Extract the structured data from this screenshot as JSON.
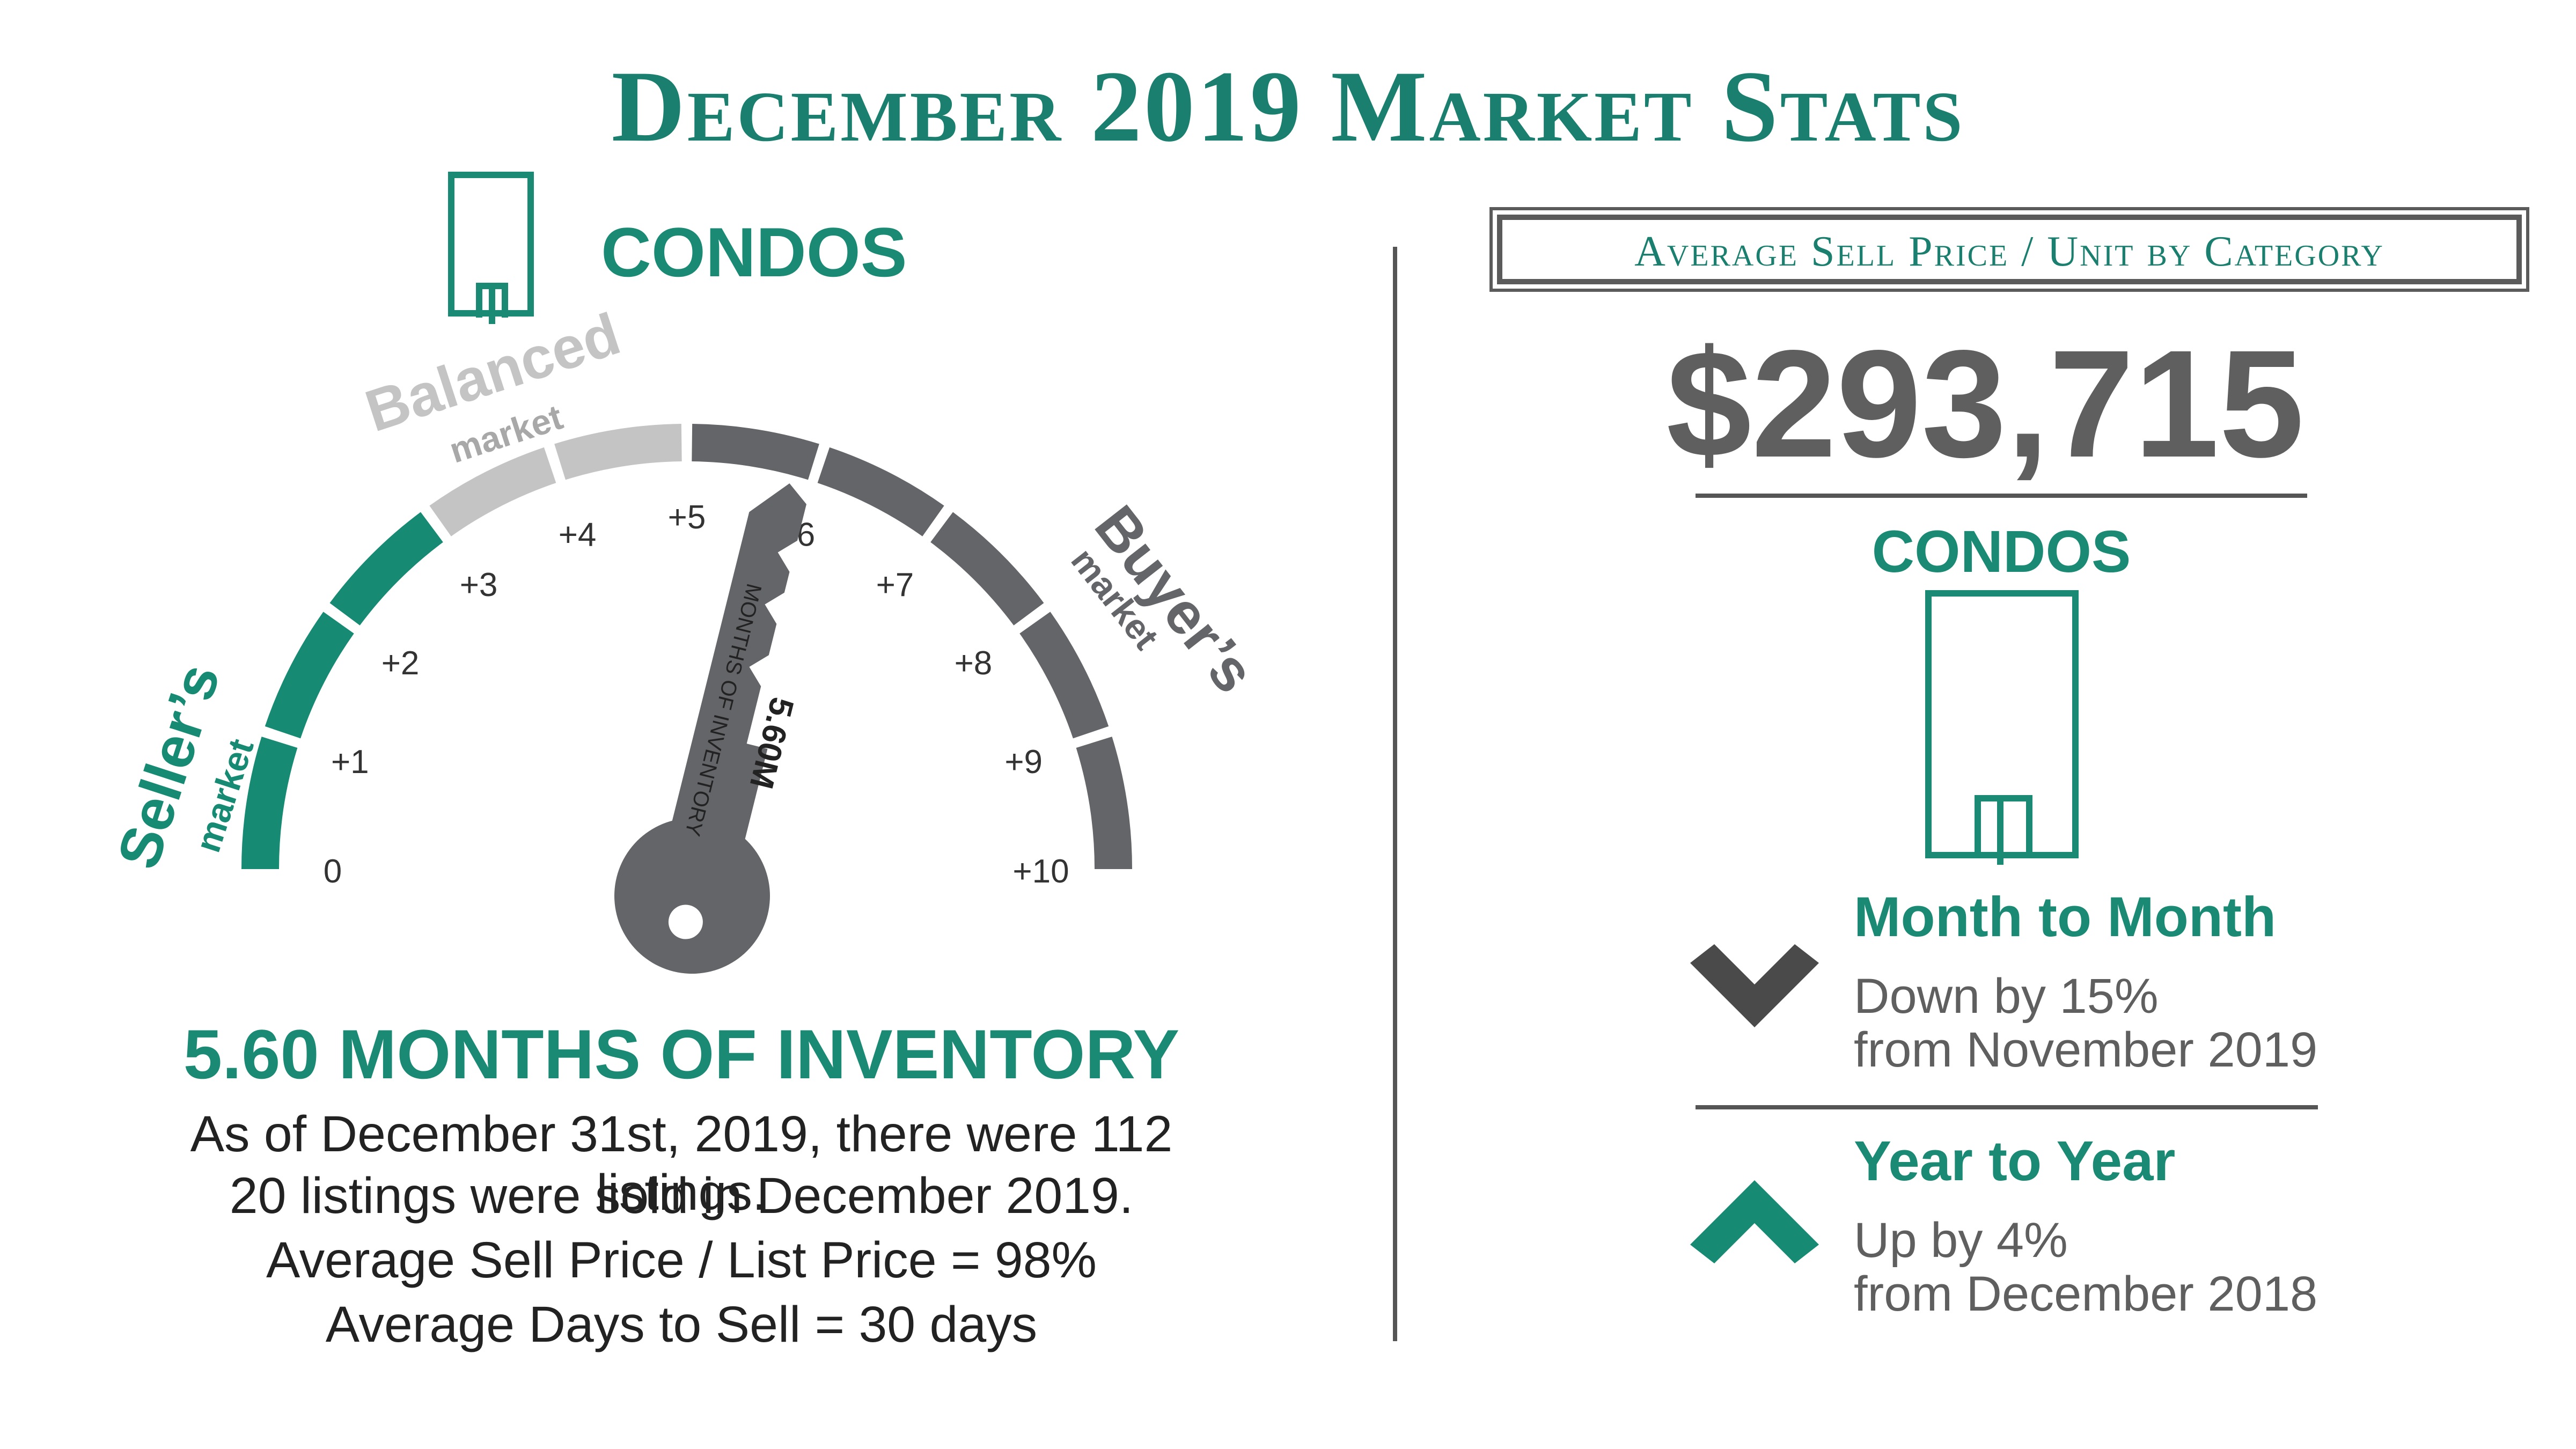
{
  "title": "December 2019 Market Stats",
  "left": {
    "category": "CONDOS",
    "gauge": {
      "sellers_label": "Seller’s",
      "sellers_sub": "market",
      "balanced_label": "Balanced",
      "balanced_sub": "market",
      "buyers_label": "Buyer’s",
      "buyers_sub": "market",
      "ticks": [
        "0",
        "+1",
        "+2",
        "+3",
        "+4",
        "+5",
        "+6",
        "+7",
        "+8",
        "+9",
        "+10"
      ],
      "value": 5.6,
      "key_value": "5.60M",
      "key_label": "MONTHS OF INVENTORY",
      "colors": {
        "sellers": "#178a74",
        "balanced": "#c4c4c4",
        "buyers": "#646569"
      }
    },
    "headline": "5.60 MONTHS OF INVENTORY",
    "details": [
      "As of December 31st, 2019, there were 112 listings.",
      "20 listings were sold in December 2019.",
      "Average Sell Price / List Price = 98%",
      "Average Days to Sell = 30 days"
    ]
  },
  "right": {
    "box_label": "Average Sell Price / Unit by Category",
    "price": "$293,715",
    "category": "CONDOS",
    "month": {
      "title": "Month to Month",
      "line1": "Down by 15%",
      "line2": "from November 2019",
      "direction": "down",
      "color": "#4a4a4a"
    },
    "year": {
      "title": "Year to Year",
      "line1": "Up by 4%",
      "line2": "from December 2018",
      "direction": "up",
      "color": "#178a74"
    }
  }
}
